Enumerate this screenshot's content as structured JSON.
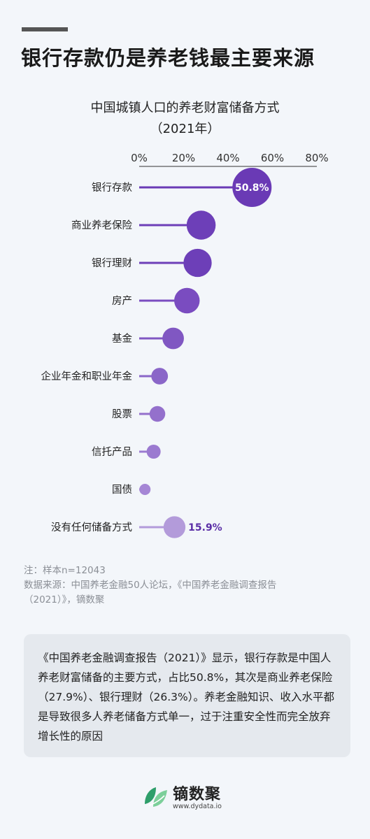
{
  "headline": "银行存款仍是养老钱最主要来源",
  "chart_data": {
    "type": "bar",
    "title": "中国城镇人口的养老财富储备方式",
    "subtitle": "（2021年）",
    "categories": [
      "银行存款",
      "商业养老保险",
      "银行理财",
      "房产",
      "基金",
      "企业年金和职业年金",
      "股票",
      "信托产品",
      "国债",
      "没有任何储备方式"
    ],
    "values": [
      50.8,
      27.9,
      26.3,
      21.5,
      15.3,
      9.2,
      8.2,
      6.5,
      2.6,
      15.9
    ],
    "value_labels": [
      "50.8%",
      "",
      "",
      "",
      "",
      "",
      "",
      "",
      "",
      "15.9%"
    ],
    "x_ticks": [
      "0%",
      "20%",
      "40%",
      "60%",
      "80%"
    ],
    "xlim": [
      0,
      80
    ],
    "colors": [
      "#6a3ab5",
      "#6d3fb8",
      "#6d3fb8",
      "#7a4cc0",
      "#8057c2",
      "#8a66c8",
      "#9470cc",
      "#9b7ad0",
      "#a586d5",
      "#b39bda"
    ],
    "grid": false
  },
  "notes": {
    "line1": "注：样本n=12043",
    "line2": "数据来源：中国养老金融50人论坛，《中国养老金融调查报告",
    "line3": "（2021）》，镝数聚"
  },
  "summary": "《中国养老金融调查报告（2021）》显示，银行存款是中国人养老财富储备的主要方式，占比50.8%，其次是商业养老保险（27.9%）、银行理财（26.3%）。养老金融知识、收入水平都是导致很多人养老储备方式单一，过于注重安全性而完全放弃增长性的原因",
  "brand": {
    "name": "镝数聚",
    "url": "www.dydata.io",
    "logo_icon": "leaf-icon",
    "logo_colors": [
      "#2e9e6a",
      "#7ccf9a"
    ]
  }
}
